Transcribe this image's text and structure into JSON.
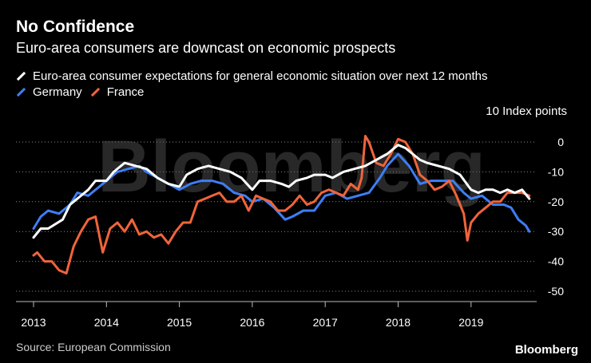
{
  "header": {
    "title": "No Confidence",
    "subtitle": "Euro-area consumers are downcast on economic prospects"
  },
  "legend": {
    "euro_area": "Euro-area consumer expectations for general economic situation over next 12 months",
    "germany": "Germany",
    "france": "France"
  },
  "unit_label": "10 Index points",
  "source": "Source: European Commission",
  "brand": "Bloomberg",
  "watermark": "Bloomberg",
  "colors": {
    "background": "#000000",
    "euro_area": "#ffffff",
    "germany": "#3d7ef5",
    "france": "#f0643a",
    "grid": "#8a8a8a"
  },
  "chart_data": {
    "type": "line",
    "title": "No Confidence",
    "xlabel": "",
    "ylabel": "Index points",
    "ylim": [
      -50,
      0
    ],
    "yticks": [
      0,
      -10,
      -20,
      -30,
      -40,
      -50
    ],
    "ytick_labels": [
      "0",
      "-10",
      "-20",
      "-30",
      "-40",
      "-50"
    ],
    "xticks": [
      2013,
      2014,
      2015,
      2016,
      2017,
      2018,
      2019
    ],
    "grid": true,
    "series": [
      {
        "name": "Euro-area consumer expectations for general economic situation over next 12 months",
        "key": "euro_area",
        "x": [
          2013.0,
          2013.1,
          2013.2,
          2013.4,
          2013.5,
          2013.6,
          2013.75,
          2013.85,
          2014.0,
          2014.1,
          2014.25,
          2014.4,
          2014.55,
          2014.7,
          2014.85,
          2015.0,
          2015.1,
          2015.25,
          2015.4,
          2015.55,
          2015.7,
          2015.85,
          2016.0,
          2016.1,
          2016.25,
          2016.4,
          2016.5,
          2016.6,
          2016.75,
          2016.85,
          2017.0,
          2017.1,
          2017.25,
          2017.4,
          2017.55,
          2017.7,
          2017.85,
          2018.0,
          2018.1,
          2018.2,
          2018.3,
          2018.4,
          2018.55,
          2018.7,
          2018.85,
          2019.0,
          2019.1,
          2019.2,
          2019.3,
          2019.4,
          2019.5,
          2019.6,
          2019.7,
          2019.8
        ],
        "values": [
          -32,
          -29,
          -29,
          -26,
          -21,
          -19,
          -16,
          -13,
          -13,
          -10,
          -7,
          -8,
          -9,
          -12,
          -14,
          -15,
          -11,
          -9,
          -8,
          -9,
          -10,
          -12,
          -16,
          -13,
          -13,
          -14,
          -15,
          -13,
          -12,
          -11,
          -11,
          -12,
          -10,
          -9,
          -8,
          -6,
          -4,
          -1,
          -2,
          -4,
          -6,
          -7,
          -8,
          -9,
          -11,
          -16,
          -17,
          -16,
          -16,
          -17,
          -16,
          -17,
          -16,
          -19
        ]
      },
      {
        "name": "Germany",
        "key": "germany",
        "x": [
          2013.0,
          2013.1,
          2013.2,
          2013.35,
          2013.5,
          2013.6,
          2013.75,
          2013.9,
          2014.0,
          2014.15,
          2014.3,
          2014.45,
          2014.55,
          2014.7,
          2014.85,
          2015.0,
          2015.15,
          2015.3,
          2015.45,
          2015.6,
          2015.75,
          2015.9,
          2016.0,
          2016.15,
          2016.3,
          2016.45,
          2016.55,
          2016.7,
          2016.85,
          2017.0,
          2017.15,
          2017.3,
          2017.45,
          2017.6,
          2017.75,
          2017.85,
          2018.0,
          2018.15,
          2018.3,
          2018.45,
          2018.6,
          2018.75,
          2018.9,
          2019.0,
          2019.15,
          2019.3,
          2019.45,
          2019.55,
          2019.65,
          2019.75,
          2019.8
        ],
        "values": [
          -29,
          -25,
          -23,
          -24,
          -21,
          -17,
          -18,
          -15,
          -13,
          -10,
          -9,
          -8,
          -10,
          -12,
          -14,
          -16,
          -14,
          -13,
          -13,
          -14,
          -17,
          -18,
          -20,
          -19,
          -22,
          -26,
          -25,
          -23,
          -23,
          -18,
          -17,
          -19,
          -18,
          -17,
          -12,
          -8,
          -4,
          -8,
          -14,
          -13,
          -13,
          -13,
          -17,
          -19,
          -18,
          -21,
          -21,
          -22,
          -26,
          -28,
          -30
        ]
      },
      {
        "name": "France",
        "key": "france",
        "x": [
          2013.0,
          2013.05,
          2013.15,
          2013.25,
          2013.35,
          2013.45,
          2013.55,
          2013.65,
          2013.75,
          2013.85,
          2013.95,
          2014.05,
          2014.15,
          2014.25,
          2014.35,
          2014.45,
          2014.55,
          2014.65,
          2014.75,
          2014.85,
          2014.95,
          2015.05,
          2015.15,
          2015.25,
          2015.35,
          2015.45,
          2015.55,
          2015.65,
          2015.75,
          2015.85,
          2015.95,
          2016.05,
          2016.15,
          2016.25,
          2016.35,
          2016.45,
          2016.55,
          2016.65,
          2016.75,
          2016.85,
          2016.95,
          2017.05,
          2017.15,
          2017.25,
          2017.35,
          2017.45,
          2017.5,
          2017.55,
          2017.6,
          2017.7,
          2017.8,
          2017.9,
          2018.0,
          2018.1,
          2018.2,
          2018.3,
          2018.4,
          2018.5,
          2018.6,
          2018.7,
          2018.8,
          2018.9,
          2018.95,
          2019.0,
          2019.1,
          2019.2,
          2019.3,
          2019.4,
          2019.5,
          2019.6,
          2019.7,
          2019.8
        ],
        "values": [
          -38,
          -37,
          -40,
          -40,
          -43,
          -44,
          -35,
          -30,
          -26,
          -25,
          -37,
          -29,
          -27,
          -30,
          -26,
          -31,
          -30,
          -32,
          -31,
          -34,
          -30,
          -27,
          -27,
          -20,
          -19,
          -18,
          -17,
          -20,
          -20,
          -18,
          -23,
          -18,
          -19,
          -20,
          -23,
          -23,
          -21,
          -18,
          -21,
          -20,
          -17,
          -16,
          -17,
          -18,
          -14,
          -16,
          -12,
          2,
          0,
          -7,
          -8,
          -4,
          1,
          0,
          -4,
          -11,
          -13,
          -16,
          -15,
          -13,
          -18,
          -24,
          -33,
          -27,
          -24,
          -22,
          -20,
          -20,
          -17,
          -17,
          -17,
          -18
        ]
      }
    ]
  }
}
